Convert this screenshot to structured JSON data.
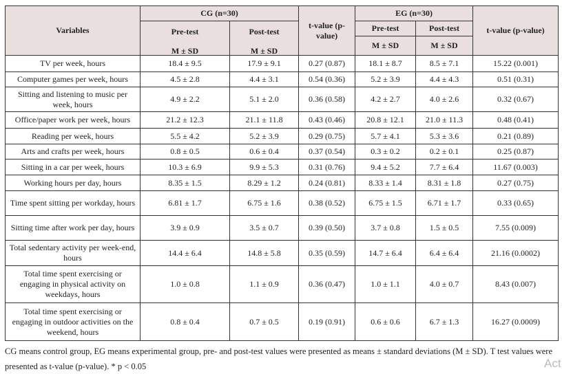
{
  "header": {
    "variables": "Variables",
    "cg": "CG (n=30)",
    "eg": "EG (n=30)",
    "pre": "Pre-test",
    "post": "Post-test",
    "msd": "M ± SD",
    "tval_cg": "t-value (p-value)",
    "tval_eg": "t-value (p-value)"
  },
  "rows": [
    {
      "variable": "TV per week, hours",
      "cg_pre": "18.4 ± 9.5",
      "cg_post": "17.9 ± 9.1",
      "cg_t": "0.27 (0.87)",
      "eg_pre": "18.1 ± 8.7",
      "eg_post": "8.5 ± 7.1",
      "eg_t": "15.22 (0.001)"
    },
    {
      "variable": "Computer games per week, hours",
      "cg_pre": "4.5 ± 2.8",
      "cg_post": "4.4 ± 3.1",
      "cg_t": "0.54 (0.36)",
      "eg_pre": "5.2 ± 3.9",
      "eg_post": "4.4 ± 4.3",
      "eg_t": "0.51 (0.31)"
    },
    {
      "variable": "Sitting and listening to music per week, hours",
      "cg_pre": "4.9 ± 2.2",
      "cg_post": "5.1 ± 2.0",
      "cg_t": "0.36 (0.58)",
      "eg_pre": "4.2 ± 2.7",
      "eg_post": "4.0 ± 2.6",
      "eg_t": "0.32 (0.67)"
    },
    {
      "variable": "Office/paper work per week, hours",
      "cg_pre": "21.2 ± 12.3",
      "cg_post": "21.1 ± 11.8",
      "cg_t": "0.43 (0.46)",
      "eg_pre": "20.8 ± 12.1",
      "eg_post": "21.0 ± 11.3",
      "eg_t": "0.48 (0.41)"
    },
    {
      "variable": "Reading per week, hours",
      "cg_pre": "5.5 ± 4.2",
      "cg_post": "5.2 ± 3.9",
      "cg_t": "0.29 (0.75)",
      "eg_pre": "5.7 ± 4.1",
      "eg_post": "5.3 ± 3.6",
      "eg_t": "0.21 (0.89)"
    },
    {
      "variable": "Arts and crafts per week, hours",
      "cg_pre": "0.8 ± 0.5",
      "cg_post": "0.6 ± 0.4",
      "cg_t": "0.37 (0.54)",
      "eg_pre": "0.3 ± 0.2",
      "eg_post": "0.2 ± 0.1",
      "eg_t": "0.25 (0.87)"
    },
    {
      "variable": "Sitting in a car per week, hours",
      "cg_pre": "10.3 ± 6.9",
      "cg_post": "9.9 ± 5.3",
      "cg_t": "0.31 (0.76)",
      "eg_pre": "9.4 ± 5.2",
      "eg_post": "7.7 ± 6.4",
      "eg_t": "11.67 (0.003)"
    },
    {
      "variable": "Working hours per day, hours",
      "cg_pre": "8.35 ± 1.5",
      "cg_post": "8.29 ± 1.2",
      "cg_t": "0.24 (0.81)",
      "eg_pre": "8.33 ± 1.4",
      "eg_post": "8.31 ± 1.8",
      "eg_t": "0.27 (0.75)"
    },
    {
      "variable": "Time spent sitting per workday, hours",
      "cg_pre": "6.81 ± 1.7",
      "cg_post": "6.75 ± 1.6",
      "cg_t": "0.38 (0.52)",
      "eg_pre": "6.75 ± 1.5",
      "eg_post": "6.71 ± 1.7",
      "eg_t": "0.33 (0.65)"
    },
    {
      "variable": "Sitting time after work per day, hours",
      "cg_pre": "3.9 ± 0.9",
      "cg_post": "3.5 ± 0.7",
      "cg_t": "0.39 (0.50)",
      "eg_pre": "3.7 ± 0.8",
      "eg_post": "1.5 ± 0.5",
      "eg_t": "7.55 (0.009)"
    },
    {
      "variable": "Total sedentary activity per week-end, hours",
      "cg_pre": "14.4 ± 6.4",
      "cg_post": "14.8 ± 5.8",
      "cg_t": "0.35 (0.59)",
      "eg_pre": "14.7 ± 6.4",
      "eg_post": "6.4 ± 6.4",
      "eg_t": "21.16 (0.0002)"
    },
    {
      "variable": "Total time spent exercising or engaging in physical activity on weekdays, hours",
      "cg_pre": "1.0 ± 0.8",
      "cg_post": "1.1 ± 0.9",
      "cg_t": "0.36 (0.47)",
      "eg_pre": "1.0 ± 1.1",
      "eg_post": "4.0 ± 0.7",
      "eg_t": "8.43 (0.007)"
    },
    {
      "variable": "Total time spent exercising or engaging in outdoor activities on the weekend, hours",
      "cg_pre": "0.8 ± 0.4",
      "cg_post": "0.7 ± 0.5",
      "cg_t": "0.19 (0.91)",
      "eg_pre": "0.6 ± 0.6",
      "eg_post": "6.7 ± 1.3",
      "eg_t": "16.27 (0.0009)"
    }
  ],
  "footnote": "CG means control group, EG means experimental group, pre- and post-test values were presented as means ± standard deviations (M ± SD). T test values were presented as t-value (p-value). * p < 0.05",
  "watermark": "Act"
}
